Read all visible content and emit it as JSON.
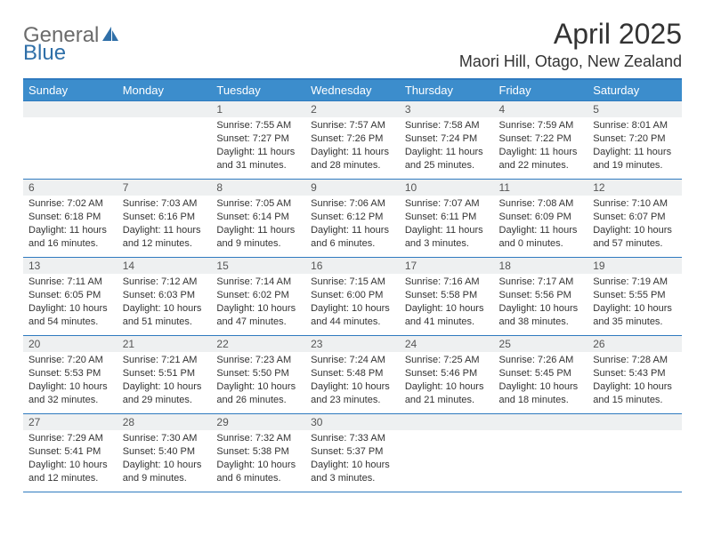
{
  "brand": {
    "general": "General",
    "blue": "Blue"
  },
  "title": "April 2025",
  "location": "Maori Hill, Otago, New Zealand",
  "colors": {
    "header_bg": "#3c8dcc",
    "header_text": "#ffffff",
    "border": "#2f7abf",
    "daynum_bg": "#eef0f1",
    "text": "#333333",
    "logo_gray": "#6b6b6b",
    "logo_blue": "#2f6fa8"
  },
  "daysOfWeek": [
    "Sunday",
    "Monday",
    "Tuesday",
    "Wednesday",
    "Thursday",
    "Friday",
    "Saturday"
  ],
  "startWeekday": 2,
  "numDays": 30,
  "days": {
    "1": {
      "sunrise": "7:55 AM",
      "sunset": "7:27 PM",
      "daylight": "11 hours and 31 minutes."
    },
    "2": {
      "sunrise": "7:57 AM",
      "sunset": "7:26 PM",
      "daylight": "11 hours and 28 minutes."
    },
    "3": {
      "sunrise": "7:58 AM",
      "sunset": "7:24 PM",
      "daylight": "11 hours and 25 minutes."
    },
    "4": {
      "sunrise": "7:59 AM",
      "sunset": "7:22 PM",
      "daylight": "11 hours and 22 minutes."
    },
    "5": {
      "sunrise": "8:01 AM",
      "sunset": "7:20 PM",
      "daylight": "11 hours and 19 minutes."
    },
    "6": {
      "sunrise": "7:02 AM",
      "sunset": "6:18 PM",
      "daylight": "11 hours and 16 minutes."
    },
    "7": {
      "sunrise": "7:03 AM",
      "sunset": "6:16 PM",
      "daylight": "11 hours and 12 minutes."
    },
    "8": {
      "sunrise": "7:05 AM",
      "sunset": "6:14 PM",
      "daylight": "11 hours and 9 minutes."
    },
    "9": {
      "sunrise": "7:06 AM",
      "sunset": "6:12 PM",
      "daylight": "11 hours and 6 minutes."
    },
    "10": {
      "sunrise": "7:07 AM",
      "sunset": "6:11 PM",
      "daylight": "11 hours and 3 minutes."
    },
    "11": {
      "sunrise": "7:08 AM",
      "sunset": "6:09 PM",
      "daylight": "11 hours and 0 minutes."
    },
    "12": {
      "sunrise": "7:10 AM",
      "sunset": "6:07 PM",
      "daylight": "10 hours and 57 minutes."
    },
    "13": {
      "sunrise": "7:11 AM",
      "sunset": "6:05 PM",
      "daylight": "10 hours and 54 minutes."
    },
    "14": {
      "sunrise": "7:12 AM",
      "sunset": "6:03 PM",
      "daylight": "10 hours and 51 minutes."
    },
    "15": {
      "sunrise": "7:14 AM",
      "sunset": "6:02 PM",
      "daylight": "10 hours and 47 minutes."
    },
    "16": {
      "sunrise": "7:15 AM",
      "sunset": "6:00 PM",
      "daylight": "10 hours and 44 minutes."
    },
    "17": {
      "sunrise": "7:16 AM",
      "sunset": "5:58 PM",
      "daylight": "10 hours and 41 minutes."
    },
    "18": {
      "sunrise": "7:17 AM",
      "sunset": "5:56 PM",
      "daylight": "10 hours and 38 minutes."
    },
    "19": {
      "sunrise": "7:19 AM",
      "sunset": "5:55 PM",
      "daylight": "10 hours and 35 minutes."
    },
    "20": {
      "sunrise": "7:20 AM",
      "sunset": "5:53 PM",
      "daylight": "10 hours and 32 minutes."
    },
    "21": {
      "sunrise": "7:21 AM",
      "sunset": "5:51 PM",
      "daylight": "10 hours and 29 minutes."
    },
    "22": {
      "sunrise": "7:23 AM",
      "sunset": "5:50 PM",
      "daylight": "10 hours and 26 minutes."
    },
    "23": {
      "sunrise": "7:24 AM",
      "sunset": "5:48 PM",
      "daylight": "10 hours and 23 minutes."
    },
    "24": {
      "sunrise": "7:25 AM",
      "sunset": "5:46 PM",
      "daylight": "10 hours and 21 minutes."
    },
    "25": {
      "sunrise": "7:26 AM",
      "sunset": "5:45 PM",
      "daylight": "10 hours and 18 minutes."
    },
    "26": {
      "sunrise": "7:28 AM",
      "sunset": "5:43 PM",
      "daylight": "10 hours and 15 minutes."
    },
    "27": {
      "sunrise": "7:29 AM",
      "sunset": "5:41 PM",
      "daylight": "10 hours and 12 minutes."
    },
    "28": {
      "sunrise": "7:30 AM",
      "sunset": "5:40 PM",
      "daylight": "10 hours and 9 minutes."
    },
    "29": {
      "sunrise": "7:32 AM",
      "sunset": "5:38 PM",
      "daylight": "10 hours and 6 minutes."
    },
    "30": {
      "sunrise": "7:33 AM",
      "sunset": "5:37 PM",
      "daylight": "10 hours and 3 minutes."
    }
  },
  "labels": {
    "sunrise_prefix": "Sunrise: ",
    "sunset_prefix": "Sunset: ",
    "daylight_prefix": "Daylight: "
  }
}
